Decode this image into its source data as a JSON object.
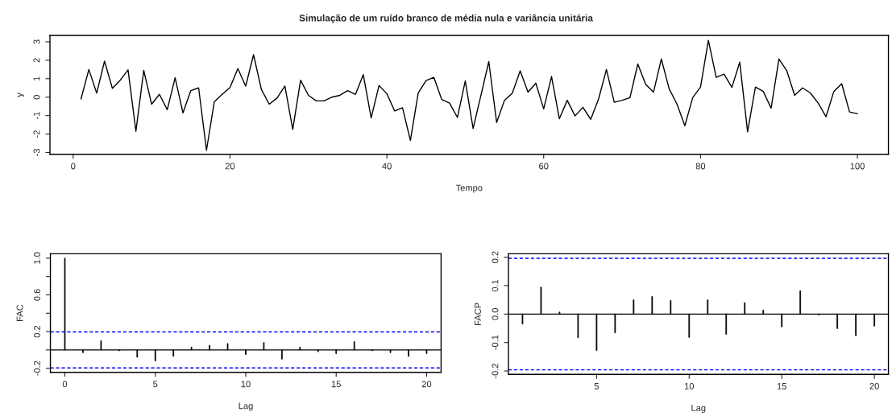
{
  "chart_data": [
    {
      "type": "line",
      "title": "Simulação de um ruído branco de média nula e variância unitária",
      "xlabel": "Tempo",
      "ylabel": "y",
      "x": [
        1,
        2,
        3,
        4,
        5,
        6,
        7,
        8,
        9,
        10,
        11,
        12,
        13,
        14,
        15,
        16,
        17,
        18,
        19,
        20,
        21,
        22,
        23,
        24,
        25,
        26,
        27,
        28,
        29,
        30,
        31,
        32,
        33,
        34,
        35,
        36,
        37,
        38,
        39,
        40,
        41,
        42,
        43,
        44,
        45,
        46,
        47,
        48,
        49,
        50,
        51,
        52,
        53,
        54,
        55,
        56,
        57,
        58,
        59,
        60,
        61,
        62,
        63,
        64,
        65,
        66,
        67,
        68,
        69,
        70,
        71,
        72,
        73,
        74,
        75,
        76,
        77,
        78,
        79,
        80,
        81,
        82,
        83,
        84,
        85,
        86,
        87,
        88,
        89,
        90,
        91,
        92,
        93,
        94,
        95,
        96,
        97,
        98,
        99,
        100
      ],
      "series": [
        {
          "color": "#000000",
          "values": [
            -0.1,
            1.5,
            0.22,
            1.95,
            0.48,
            0.92,
            1.48,
            -1.85,
            1.45,
            -0.38,
            0.15,
            -0.68,
            1.05,
            -0.85,
            0.35,
            0.5,
            -2.88,
            -0.25,
            0.15,
            0.52,
            1.55,
            0.6,
            2.3,
            0.42,
            -0.38,
            -0.05,
            0.6,
            -1.75,
            0.92,
            0.1,
            -0.2,
            -0.2,
            0.0,
            0.1,
            0.35,
            0.15,
            1.22,
            -1.13,
            0.63,
            0.19,
            -0.75,
            -0.57,
            -2.35,
            0.22,
            0.9,
            1.07,
            -0.13,
            -0.32,
            -1.1,
            0.88,
            -1.7,
            0.1,
            1.93,
            -1.37,
            -0.17,
            0.22,
            1.43,
            0.27,
            0.75,
            -0.64,
            1.12,
            -1.17,
            -0.17,
            -1.02,
            -0.55,
            -1.2,
            -0.1,
            1.5,
            -0.28,
            -0.17,
            -0.03,
            1.8,
            0.7,
            0.27,
            2.07,
            0.45,
            -0.38,
            -1.55,
            -0.03,
            0.55,
            3.08,
            1.07,
            1.25,
            0.53,
            1.9,
            -1.88,
            0.55,
            0.31,
            -0.6,
            2.07,
            1.43,
            0.1,
            0.5,
            0.23,
            -0.32,
            -1.06,
            0.31,
            0.73,
            -0.8,
            -0.9
          ]
        }
      ],
      "xlim": [
        -2.96,
        103.96
      ],
      "ylim": [
        -3.1,
        3.35
      ],
      "xticks": [
        0,
        20,
        40,
        60,
        80,
        100
      ],
      "yticks": [
        -3,
        -2,
        -1,
        0,
        1,
        2,
        3
      ],
      "line_style": "solid",
      "grid": false,
      "legend": false
    },
    {
      "type": "bar",
      "xlabel": "Lag",
      "ylabel": "FAC",
      "x": [
        0,
        1,
        2,
        3,
        4,
        5,
        6,
        7,
        8,
        9,
        10,
        11,
        12,
        13,
        14,
        15,
        16,
        17,
        18,
        19,
        20
      ],
      "series": [
        {
          "color": "#000000",
          "values": [
            1.0,
            -0.03,
            0.1,
            -0.01,
            -0.08,
            -0.12,
            -0.07,
            0.03,
            0.05,
            0.07,
            -0.05,
            0.08,
            -0.1,
            0.03,
            -0.02,
            -0.04,
            0.09,
            -0.01,
            -0.03,
            -0.07,
            -0.04
          ]
        }
      ],
      "xlim": [
        -0.8,
        20.8
      ],
      "ylim": [
        -0.244,
        1.048
      ],
      "xticks": [
        0,
        5,
        10,
        15,
        20
      ],
      "yticks": [
        -0.2,
        {
          "value": 0.0,
          "label": null
        },
        0.2,
        {
          "value": 0.4,
          "label": null
        },
        0.6,
        {
          "value": 0.8,
          "label": null
        },
        {
          "value": 1,
          "label": "1.0"
        }
      ],
      "ref_lines": [
        {
          "axis": "y",
          "value": 0,
          "color": "#000000",
          "line_style": "solid"
        },
        {
          "axis": "y",
          "value": 0.196,
          "color": "#0000ff",
          "line_style": "dashed"
        },
        {
          "axis": "y",
          "value": -0.196,
          "color": "#0000ff",
          "line_style": "dashed"
        }
      ],
      "grid": false,
      "legend": false
    },
    {
      "type": "bar",
      "xlabel": "Lag",
      "ylabel": "FACP",
      "x": [
        1,
        2,
        3,
        4,
        5,
        6,
        7,
        8,
        9,
        10,
        11,
        12,
        13,
        14,
        15,
        16,
        17,
        18,
        19,
        20
      ],
      "series": [
        {
          "color": "#000000",
          "values": [
            -0.035,
            0.095,
            0.007,
            -0.083,
            -0.128,
            -0.066,
            0.05,
            0.062,
            0.048,
            -0.082,
            0.05,
            -0.071,
            0.04,
            0.014,
            -0.045,
            0.082,
            -0.003,
            -0.051,
            -0.076,
            -0.042
          ]
        }
      ],
      "xlim": [
        0.24,
        20.76
      ],
      "ylim": [
        -0.212,
        0.212
      ],
      "xticks": [
        5,
        10,
        15,
        20
      ],
      "yticks": [
        -0.2,
        -0.1,
        {
          "value": 0,
          "label": "0.0"
        },
        0.1,
        0.2
      ],
      "ref_lines": [
        {
          "axis": "y",
          "value": 0,
          "color": "#000000",
          "line_style": "solid"
        },
        {
          "axis": "y",
          "value": 0.196,
          "color": "#0000ff",
          "line_style": "dashed"
        },
        {
          "axis": "y",
          "value": -0.196,
          "color": "#0000ff",
          "line_style": "dashed"
        }
      ],
      "grid": false,
      "legend": false
    }
  ]
}
